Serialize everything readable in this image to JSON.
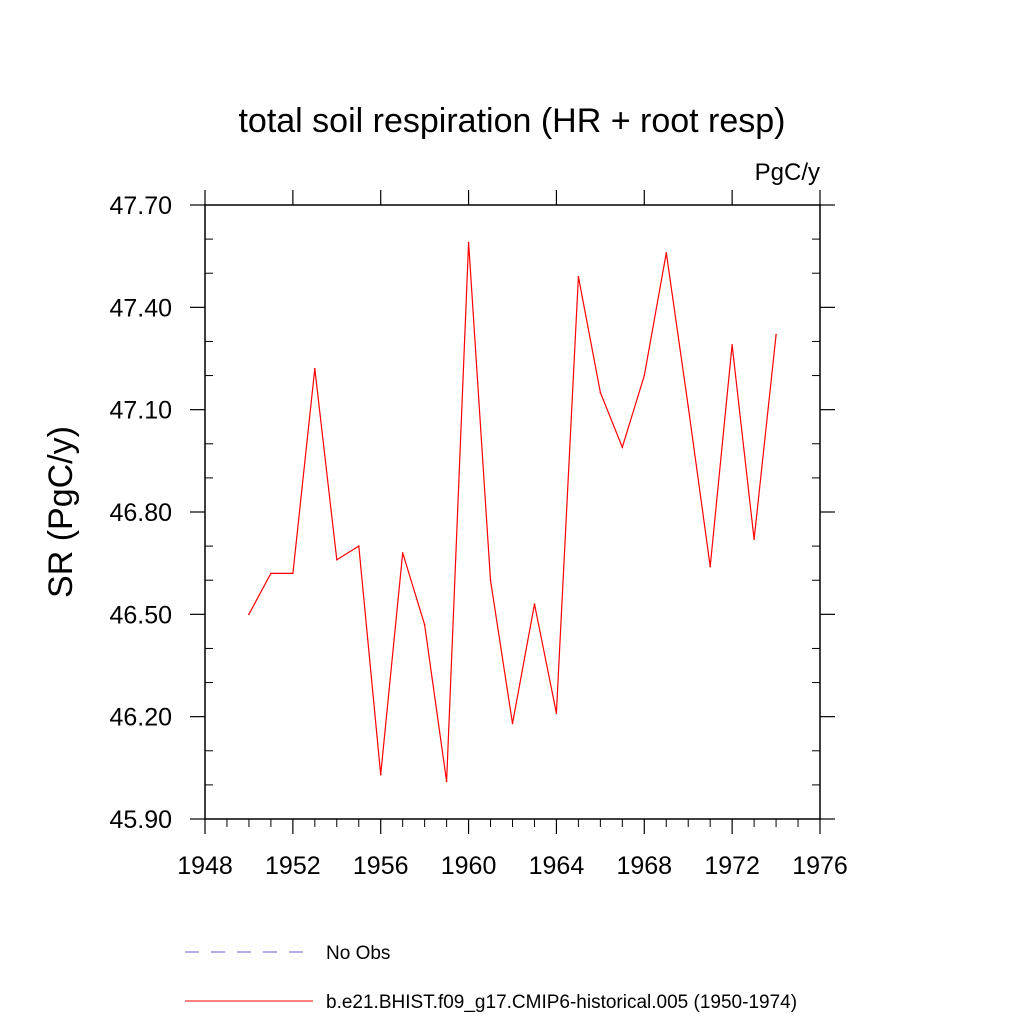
{
  "chart_data": {
    "type": "line",
    "title": "total soil respiration (HR + root resp)",
    "units": "PgC/y",
    "ylabel": "SR  (PgC/y)",
    "xlabel": "",
    "xlim": [
      1948,
      1976
    ],
    "ylim": [
      45.9,
      47.7
    ],
    "x_major_ticks": [
      1948,
      1952,
      1956,
      1960,
      1964,
      1968,
      1972,
      1976
    ],
    "x_major_tick_labels": [
      "1948",
      "1952",
      "1956",
      "1960",
      "1964",
      "1968",
      "1972",
      "1976"
    ],
    "y_major_ticks": [
      45.9,
      46.2,
      46.5,
      46.8,
      47.1,
      47.4,
      47.7
    ],
    "y_major_tick_labels": [
      "45.90",
      "46.20",
      "46.50",
      "46.80",
      "47.10",
      "47.40",
      "47.70"
    ],
    "x_minor_step": 1,
    "y_minor_step": 0.1,
    "grid": false,
    "legend_position": "bottom",
    "series": [
      {
        "name": "b.e21.BHIST.f09_g17.CMIP6-historical.005 (1950-1974)",
        "color": "#ff0000",
        "dash": "solid",
        "x": [
          1950,
          1951,
          1952,
          1953,
          1954,
          1955,
          1956,
          1957,
          1958,
          1959,
          1960,
          1961,
          1962,
          1963,
          1964,
          1965,
          1966,
          1967,
          1968,
          1969,
          1970,
          1971,
          1972,
          1973,
          1974
        ],
        "values": [
          46.5,
          46.62,
          46.62,
          47.22,
          46.66,
          46.7,
          46.03,
          46.68,
          46.47,
          46.01,
          47.59,
          46.6,
          46.18,
          46.53,
          46.21,
          47.49,
          47.15,
          46.99,
          47.2,
          47.56,
          47.11,
          46.64,
          47.29,
          46.72,
          47.32
        ]
      }
    ],
    "legend": [
      {
        "label": "No Obs",
        "color": "#6a5acd",
        "dash": "dashed"
      },
      {
        "label": "b.e21.BHIST.f09_g17.CMIP6-historical.005 (1950-1974)",
        "color": "#ff0000",
        "dash": "solid"
      }
    ]
  }
}
